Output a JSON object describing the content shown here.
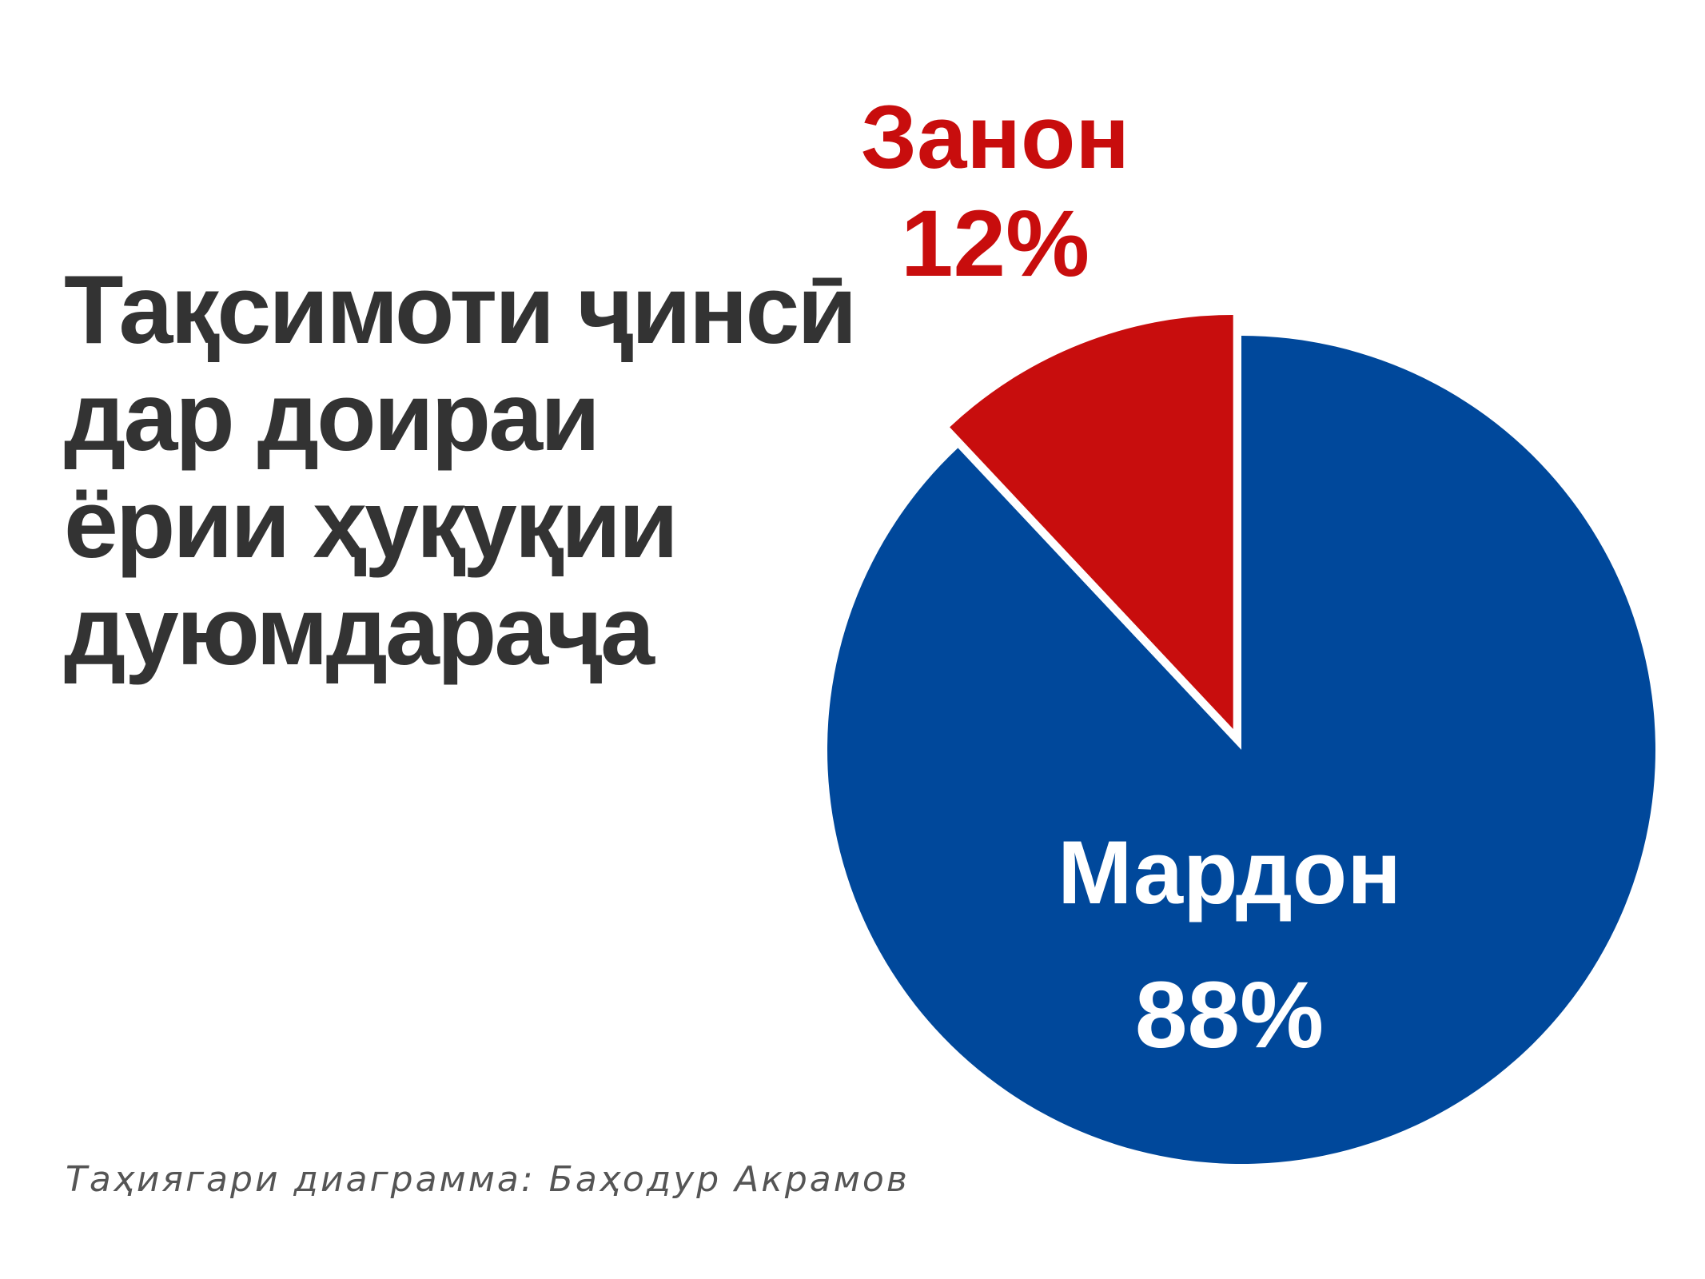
{
  "title_lines": [
    "Тақсимоти ҷинсӣ",
    "дар доираи",
    "ёрии ҳуқуқии",
    "дуюмдараҷа"
  ],
  "credit": "Таҳиягари диаграмма: Баҳодур Акрамов",
  "colors": {
    "title": "#333333",
    "credit": "#555555",
    "men": "#00489b",
    "women": "#c80d0d",
    "men_label": "#ffffff",
    "women_label": "#c80d0d"
  },
  "chart_data": {
    "type": "pie",
    "title": "Тақсимоти ҷинсӣ дар доираи ёрии ҳуқуқии дуюмдараҷа",
    "categories": [
      "Мардон",
      "Занон"
    ],
    "values": [
      88,
      12
    ],
    "value_labels": [
      "88%",
      "12%"
    ],
    "exploded": [
      "Занон"
    ],
    "legend": "none"
  }
}
